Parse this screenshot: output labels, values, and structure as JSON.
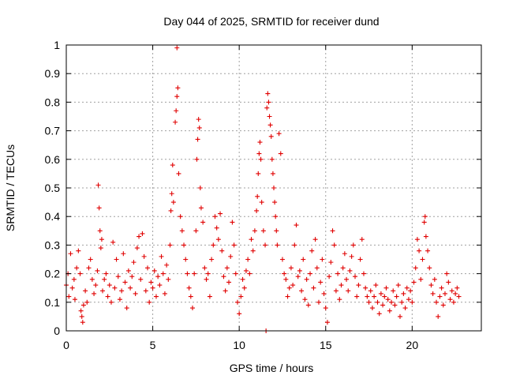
{
  "chart_data": {
    "type": "scatter",
    "title": "Day 044 of 2025, SRMTID for receiver dund",
    "xlabel": "GPS time / hours",
    "ylabel": "SRMTID / TECUs",
    "xlim": [
      0,
      24
    ],
    "ylim": [
      0,
      1
    ],
    "xticks": [
      0,
      5,
      10,
      15,
      20
    ],
    "xtick_labels": [
      "0",
      "5",
      "10",
      "15",
      "20"
    ],
    "yticks": [
      0,
      0.1,
      0.2,
      0.3,
      0.4,
      0.5,
      0.6,
      0.7,
      0.8,
      0.9,
      1
    ],
    "ytick_labels": [
      "0",
      "0.1",
      "0.2",
      "0.3",
      "0.4",
      "0.5",
      "0.6",
      "0.7",
      "0.8",
      "0.9",
      "1"
    ],
    "grid": true,
    "marker": "plus",
    "series": [
      {
        "name": "SRMTID",
        "color": "#e00000",
        "points": [
          [
            0.0,
            0.16
          ],
          [
            0.1,
            0.2
          ],
          [
            0.15,
            0.12
          ],
          [
            0.25,
            0.27
          ],
          [
            0.35,
            0.15
          ],
          [
            0.45,
            0.18
          ],
          [
            0.5,
            0.11
          ],
          [
            0.6,
            0.22
          ],
          [
            0.7,
            0.28
          ],
          [
            0.8,
            0.2
          ],
          [
            0.85,
            0.07
          ],
          [
            0.9,
            0.05
          ],
          [
            0.95,
            0.03
          ],
          [
            1.0,
            0.09
          ],
          [
            1.1,
            0.14
          ],
          [
            1.2,
            0.1
          ],
          [
            1.3,
            0.22
          ],
          [
            1.4,
            0.25
          ],
          [
            1.5,
            0.18
          ],
          [
            1.6,
            0.13
          ],
          [
            1.7,
            0.16
          ],
          [
            1.8,
            0.21
          ],
          [
            1.85,
            0.51
          ],
          [
            1.9,
            0.43
          ],
          [
            1.95,
            0.35
          ],
          [
            2.0,
            0.29
          ],
          [
            2.05,
            0.32
          ],
          [
            2.1,
            0.14
          ],
          [
            2.2,
            0.18
          ],
          [
            2.3,
            0.2
          ],
          [
            2.4,
            0.12
          ],
          [
            2.5,
            0.16
          ],
          [
            2.6,
            0.1
          ],
          [
            2.7,
            0.31
          ],
          [
            2.8,
            0.15
          ],
          [
            2.9,
            0.25
          ],
          [
            3.0,
            0.19
          ],
          [
            3.1,
            0.11
          ],
          [
            3.2,
            0.14
          ],
          [
            3.3,
            0.27
          ],
          [
            3.4,
            0.17
          ],
          [
            3.5,
            0.08
          ],
          [
            3.6,
            0.21
          ],
          [
            3.7,
            0.15
          ],
          [
            3.8,
            0.19
          ],
          [
            3.9,
            0.24
          ],
          [
            4.0,
            0.13
          ],
          [
            4.1,
            0.29
          ],
          [
            4.2,
            0.33
          ],
          [
            4.3,
            0.18
          ],
          [
            4.4,
            0.34
          ],
          [
            4.5,
            0.26
          ],
          [
            4.6,
            0.14
          ],
          [
            4.7,
            0.22
          ],
          [
            4.8,
            0.1
          ],
          [
            4.9,
            0.17
          ],
          [
            5.0,
            0.15
          ],
          [
            5.1,
            0.21
          ],
          [
            5.2,
            0.12
          ],
          [
            5.3,
            0.19
          ],
          [
            5.4,
            0.16
          ],
          [
            5.5,
            0.26
          ],
          [
            5.6,
            0.2
          ],
          [
            5.7,
            0.13
          ],
          [
            5.8,
            0.23
          ],
          [
            5.9,
            0.18
          ],
          [
            6.0,
            0.3
          ],
          [
            6.05,
            0.42
          ],
          [
            6.1,
            0.48
          ],
          [
            6.15,
            0.58
          ],
          [
            6.2,
            0.45
          ],
          [
            6.3,
            0.73
          ],
          [
            6.35,
            0.77
          ],
          [
            6.4,
            0.82
          ],
          [
            6.45,
            0.85
          ],
          [
            6.4,
            0.99
          ],
          [
            6.5,
            0.55
          ],
          [
            6.6,
            0.4
          ],
          [
            6.7,
            0.35
          ],
          [
            6.8,
            0.3
          ],
          [
            6.9,
            0.25
          ],
          [
            7.0,
            0.2
          ],
          [
            7.1,
            0.15
          ],
          [
            7.2,
            0.12
          ],
          [
            7.3,
            0.08
          ],
          [
            7.4,
            0.2
          ],
          [
            7.5,
            0.35
          ],
          [
            7.55,
            0.6
          ],
          [
            7.6,
            0.67
          ],
          [
            7.65,
            0.74
          ],
          [
            7.7,
            0.71
          ],
          [
            7.75,
            0.5
          ],
          [
            7.8,
            0.43
          ],
          [
            7.9,
            0.38
          ],
          [
            8.0,
            0.22
          ],
          [
            8.1,
            0.18
          ],
          [
            8.2,
            0.2
          ],
          [
            8.3,
            0.12
          ],
          [
            8.4,
            0.25
          ],
          [
            8.5,
            0.3
          ],
          [
            8.6,
            0.4
          ],
          [
            8.7,
            0.36
          ],
          [
            8.8,
            0.32
          ],
          [
            8.9,
            0.41
          ],
          [
            9.0,
            0.28
          ],
          [
            9.1,
            0.19
          ],
          [
            9.2,
            0.14
          ],
          [
            9.3,
            0.22
          ],
          [
            9.4,
            0.17
          ],
          [
            9.5,
            0.26
          ],
          [
            9.6,
            0.38
          ],
          [
            9.7,
            0.3
          ],
          [
            9.8,
            0.2
          ],
          [
            9.9,
            0.1
          ],
          [
            10.0,
            0.06
          ],
          [
            10.1,
            0.12
          ],
          [
            10.2,
            0.18
          ],
          [
            10.3,
            0.15
          ],
          [
            10.4,
            0.21
          ],
          [
            10.5,
            0.25
          ],
          [
            10.6,
            0.2
          ],
          [
            10.7,
            0.32
          ],
          [
            10.8,
            0.28
          ],
          [
            10.9,
            0.35
          ],
          [
            11.0,
            0.42
          ],
          [
            11.05,
            0.47
          ],
          [
            11.1,
            0.55
          ],
          [
            11.15,
            0.62
          ],
          [
            11.2,
            0.66
          ],
          [
            11.25,
            0.6
          ],
          [
            11.3,
            0.45
          ],
          [
            11.4,
            0.35
          ],
          [
            11.5,
            0.3
          ],
          [
            11.55,
            0.0
          ],
          [
            11.6,
            0.78
          ],
          [
            11.65,
            0.83
          ],
          [
            11.7,
            0.8
          ],
          [
            11.75,
            0.75
          ],
          [
            11.8,
            0.72
          ],
          [
            11.85,
            0.68
          ],
          [
            11.9,
            0.6
          ],
          [
            11.95,
            0.55
          ],
          [
            12.0,
            0.5
          ],
          [
            12.05,
            0.45
          ],
          [
            12.1,
            0.4
          ],
          [
            12.15,
            0.35
          ],
          [
            12.2,
            0.3
          ],
          [
            12.3,
            0.69
          ],
          [
            12.4,
            0.62
          ],
          [
            12.5,
            0.25
          ],
          [
            12.6,
            0.2
          ],
          [
            12.7,
            0.18
          ],
          [
            12.8,
            0.12
          ],
          [
            12.9,
            0.15
          ],
          [
            13.0,
            0.22
          ],
          [
            13.1,
            0.16
          ],
          [
            13.2,
            0.3
          ],
          [
            13.3,
            0.37
          ],
          [
            13.4,
            0.19
          ],
          [
            13.5,
            0.21
          ],
          [
            13.6,
            0.14
          ],
          [
            13.7,
            0.25
          ],
          [
            13.8,
            0.11
          ],
          [
            13.9,
            0.18
          ],
          [
            14.0,
            0.09
          ],
          [
            14.1,
            0.2
          ],
          [
            14.2,
            0.28
          ],
          [
            14.3,
            0.15
          ],
          [
            14.4,
            0.32
          ],
          [
            14.5,
            0.22
          ],
          [
            14.6,
            0.1
          ],
          [
            14.7,
            0.17
          ],
          [
            14.8,
            0.25
          ],
          [
            14.9,
            0.13
          ],
          [
            15.0,
            0.08
          ],
          [
            15.1,
            0.03
          ],
          [
            15.2,
            0.19
          ],
          [
            15.3,
            0.24
          ],
          [
            15.4,
            0.35
          ],
          [
            15.5,
            0.3
          ],
          [
            15.6,
            0.14
          ],
          [
            15.7,
            0.2
          ],
          [
            15.8,
            0.11
          ],
          [
            15.9,
            0.16
          ],
          [
            16.0,
            0.22
          ],
          [
            16.1,
            0.27
          ],
          [
            16.2,
            0.18
          ],
          [
            16.3,
            0.14
          ],
          [
            16.4,
            0.21
          ],
          [
            16.5,
            0.26
          ],
          [
            16.6,
            0.3
          ],
          [
            16.7,
            0.19
          ],
          [
            16.8,
            0.12
          ],
          [
            16.9,
            0.16
          ],
          [
            17.0,
            0.25
          ],
          [
            17.1,
            0.32
          ],
          [
            17.2,
            0.2
          ],
          [
            17.3,
            0.15
          ],
          [
            17.4,
            0.12
          ],
          [
            17.5,
            0.1
          ],
          [
            17.6,
            0.14
          ],
          [
            17.7,
            0.08
          ],
          [
            17.8,
            0.12
          ],
          [
            17.9,
            0.16
          ],
          [
            18.0,
            0.1
          ],
          [
            18.1,
            0.06
          ],
          [
            18.2,
            0.13
          ],
          [
            18.3,
            0.09
          ],
          [
            18.4,
            0.12
          ],
          [
            18.5,
            0.15
          ],
          [
            18.6,
            0.11
          ],
          [
            18.7,
            0.07
          ],
          [
            18.8,
            0.1
          ],
          [
            18.9,
            0.14
          ],
          [
            19.0,
            0.09
          ],
          [
            19.1,
            0.12
          ],
          [
            19.2,
            0.16
          ],
          [
            19.3,
            0.05
          ],
          [
            19.4,
            0.1
          ],
          [
            19.5,
            0.13
          ],
          [
            19.6,
            0.08
          ],
          [
            19.7,
            0.15
          ],
          [
            19.8,
            0.11
          ],
          [
            19.9,
            0.14
          ],
          [
            20.0,
            0.1
          ],
          [
            20.1,
            0.17
          ],
          [
            20.2,
            0.22
          ],
          [
            20.3,
            0.32
          ],
          [
            20.4,
            0.28
          ],
          [
            20.5,
            0.18
          ],
          [
            20.6,
            0.25
          ],
          [
            20.7,
            0.38
          ],
          [
            20.75,
            0.4
          ],
          [
            20.8,
            0.33
          ],
          [
            20.9,
            0.28
          ],
          [
            21.0,
            0.22
          ],
          [
            21.1,
            0.16
          ],
          [
            21.2,
            0.13
          ],
          [
            21.3,
            0.18
          ],
          [
            21.4,
            0.1
          ],
          [
            21.5,
            0.05
          ],
          [
            21.6,
            0.12
          ],
          [
            21.7,
            0.15
          ],
          [
            21.8,
            0.09
          ],
          [
            21.9,
            0.13
          ],
          [
            22.0,
            0.2
          ],
          [
            22.1,
            0.17
          ],
          [
            22.2,
            0.11
          ],
          [
            22.3,
            0.14
          ],
          [
            22.4,
            0.1
          ],
          [
            22.5,
            0.13
          ],
          [
            22.6,
            0.15
          ],
          [
            22.7,
            0.12
          ]
        ]
      }
    ]
  }
}
